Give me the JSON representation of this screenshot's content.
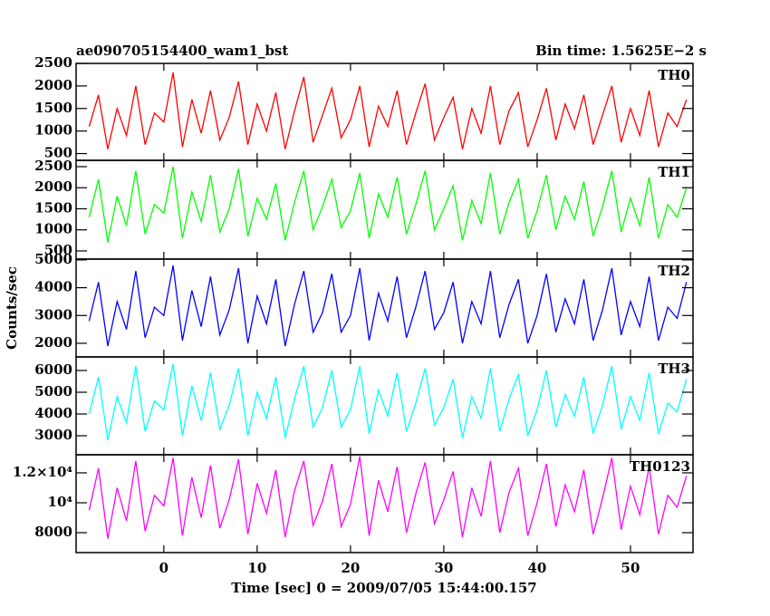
{
  "chart_data": {
    "type": "line",
    "title": "ae090705154400_wam1_bst",
    "subtitle": "Bin time: 1.5625E−2 s",
    "xlabel": "Time [sec] 0 = 2009/07/05 15:44:00.157",
    "ylabel": "Counts/sec",
    "xlim": [
      -9.4,
      56.7
    ],
    "xticks": [
      0,
      10,
      20,
      30,
      40,
      50
    ],
    "x": [
      -8,
      -7,
      -6,
      -5,
      -4,
      -3,
      -2,
      -1,
      0,
      1,
      2,
      3,
      4,
      5,
      6,
      7,
      8,
      9,
      10,
      11,
      12,
      13,
      14,
      15,
      16,
      17,
      18,
      19,
      20,
      21,
      22,
      23,
      24,
      25,
      26,
      27,
      28,
      29,
      30,
      31,
      32,
      33,
      34,
      35,
      36,
      37,
      38,
      39,
      40,
      41,
      42,
      43,
      44,
      45,
      46,
      47,
      48,
      49,
      50,
      51,
      52,
      53,
      54,
      55,
      56
    ],
    "series": [
      {
        "name": "TH0",
        "color": "#ff0000",
        "ylim": [
          350,
          2500
        ],
        "yticks": [
          500,
          1000,
          1500,
          2000,
          2500
        ],
        "values": [
          1100,
          1800,
          600,
          1500,
          900,
          2000,
          700,
          1400,
          1200,
          2300,
          650,
          1700,
          950,
          1900,
          800,
          1300,
          2100,
          700,
          1600,
          1000,
          1850,
          600,
          1450,
          2200,
          750,
          1350,
          1950,
          850,
          1250,
          2000,
          650,
          1550,
          1100,
          1900,
          700,
          1400,
          2050,
          800,
          1300,
          1750,
          600,
          1500,
          950,
          2000,
          700,
          1450,
          1850,
          650,
          1250,
          1950,
          800,
          1600,
          1050,
          1800,
          700,
          1350,
          2000,
          750,
          1500,
          900,
          1900,
          650,
          1400,
          1100,
          1700
        ]
      },
      {
        "name": "TH1",
        "color": "#00ff00",
        "ylim": [
          306,
          2650
        ],
        "yticks": [
          500,
          1000,
          1500,
          2000,
          2500
        ],
        "values": [
          1300,
          2200,
          700,
          1800,
          1100,
          2400,
          900,
          1600,
          1400,
          2500,
          800,
          1900,
          1200,
          2300,
          950,
          1500,
          2450,
          850,
          1750,
          1250,
          2100,
          750,
          1650,
          2400,
          1000,
          1550,
          2200,
          1050,
          1450,
          2350,
          800,
          1850,
          1300,
          2250,
          900,
          1600,
          2400,
          1000,
          1500,
          2050,
          750,
          1700,
          1150,
          2350,
          900,
          1650,
          2200,
          800,
          1450,
          2300,
          1000,
          1800,
          1250,
          2150,
          850,
          1550,
          2400,
          950,
          1750,
          1100,
          2250,
          800,
          1600,
          1300,
          2000
        ]
      },
      {
        "name": "TH2",
        "color": "#0000ff",
        "ylim": [
          1510,
          5030
        ],
        "yticks": [
          2000,
          3000,
          4000,
          5000
        ],
        "values": [
          2800,
          4200,
          1900,
          3500,
          2500,
          4600,
          2200,
          3300,
          3000,
          4800,
          2100,
          3900,
          2600,
          4400,
          2300,
          3200,
          4700,
          2000,
          3700,
          2700,
          4300,
          1900,
          3400,
          4600,
          2400,
          3100,
          4500,
          2400,
          3000,
          4700,
          2100,
          3800,
          2800,
          4400,
          2200,
          3300,
          4600,
          2500,
          3100,
          4200,
          2000,
          3500,
          2700,
          4600,
          2200,
          3400,
          4300,
          2000,
          3000,
          4500,
          2400,
          3600,
          2700,
          4300,
          2100,
          3200,
          4700,
          2300,
          3500,
          2600,
          4400,
          2100,
          3300,
          2900,
          4200
        ]
      },
      {
        "name": "TH3",
        "color": "#00ffff",
        "ylim": [
          2125,
          6625
        ],
        "yticks": [
          3000,
          4000,
          5000,
          6000
        ],
        "values": [
          4000,
          5700,
          2800,
          4800,
          3600,
          6200,
          3200,
          4600,
          4200,
          6300,
          3000,
          5300,
          3700,
          5900,
          3300,
          4400,
          6100,
          3000,
          5000,
          3800,
          5700,
          2900,
          4700,
          6200,
          3400,
          4300,
          6000,
          3400,
          4200,
          6200,
          3100,
          5100,
          3900,
          5900,
          3200,
          4500,
          6100,
          3500,
          4300,
          5600,
          2900,
          4800,
          3800,
          6100,
          3200,
          4700,
          5800,
          3000,
          4200,
          6000,
          3400,
          4900,
          3900,
          5700,
          3100,
          4400,
          6200,
          3300,
          4800,
          3700,
          5900,
          3100,
          4500,
          4100,
          5600
        ]
      },
      {
        "name": "TH0123",
        "color": "#ff00ff",
        "ylim": [
          6670,
          13210
        ],
        "yticks": [
          8000,
          {
            "value": 10000,
            "label": "10⁴"
          },
          {
            "value": 12000,
            "label": "1.2×10⁴"
          }
        ],
        "values": [
          9500,
          12300,
          7600,
          11000,
          8800,
          12800,
          8100,
          10500,
          9800,
          13000,
          7800,
          11700,
          9000,
          12500,
          8300,
          10200,
          12900,
          7900,
          11300,
          9300,
          12200,
          7700,
          10800,
          12800,
          8500,
          10100,
          12600,
          8400,
          9900,
          13100,
          7800,
          11500,
          9400,
          12400,
          8000,
          10600,
          12700,
          8600,
          10200,
          12100,
          7700,
          11000,
          9100,
          12800,
          8000,
          10700,
          12300,
          7800,
          10000,
          12600,
          8400,
          11200,
          9400,
          12200,
          7900,
          10300,
          13000,
          8200,
          11100,
          9200,
          12400,
          7900,
          10500,
          9700,
          11800
        ]
      }
    ]
  }
}
